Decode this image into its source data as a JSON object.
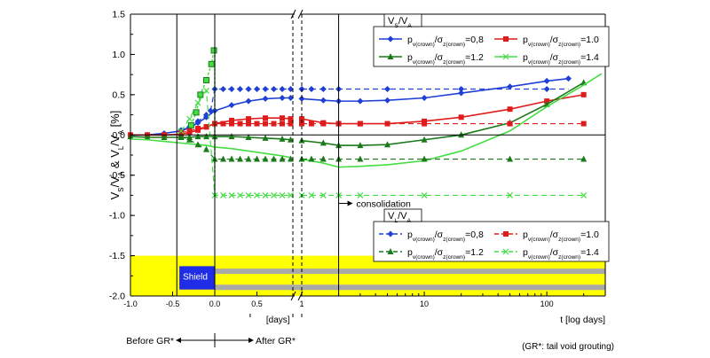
{
  "chart_data": {
    "type": "line",
    "ylabel": "V_S/V_A & V_L/V_A [%]",
    "ylim": [
      -2.0,
      1.5
    ],
    "yticks": [
      "1.5",
      "1.0",
      "0.5",
      "0.0",
      "-0.5",
      "-1.0",
      "-1.5",
      "-2.0"
    ],
    "x_axis": {
      "linear_segment": {
        "range": [
          -1.0,
          1.0
        ],
        "ticks": [
          "-1.0",
          "-0.5",
          "0.0",
          "0.5"
        ],
        "unit_label": "[days]"
      },
      "log_segment": {
        "range": [
          1,
          300
        ],
        "ticks": [
          "1",
          "10",
          "100"
        ],
        "unit_label": "t [log days]"
      },
      "axis_break": true
    },
    "grid": false,
    "annotations": {
      "consolidation": "consolidation",
      "shield": "Shield",
      "before_gr": "Before GR*",
      "after_gr": "After GR*",
      "footnote": "(GR*: tail void grouting)"
    },
    "legend_top": {
      "title_main": "V",
      "title_sub1": "S",
      "title_mid": "/V",
      "title_sub2": "A",
      "placement": "top-right"
    },
    "legend_bottom": {
      "title_main": "V",
      "title_sub1": "L",
      "title_mid": "/V",
      "title_sub2": "A",
      "placement": "bottom-right"
    },
    "legend_text": {
      "p_main": "p",
      "p_sub": "v(crown)",
      "sigma_main": "/σ",
      "sigma_sub": "z(crown)"
    },
    "colors": {
      "blue": "#1f3fd6",
      "red": "#e01b1b",
      "darkgreen": "#1a7a1a",
      "lightgreen": "#44dd44",
      "yellow": "#ffff00",
      "shield": "#1f2ee6"
    },
    "series": [
      {
        "name": "=0,8",
        "kind": "VS",
        "color": "#1f3fd6",
        "marker": "diamond",
        "x": [
          -1.0,
          -0.8,
          -0.6,
          -0.4,
          -0.3,
          -0.2,
          -0.1,
          0.0,
          0.2,
          0.4,
          0.6,
          0.8,
          0.9,
          1.0,
          1.5,
          2.0,
          3,
          5,
          10,
          20,
          50,
          100,
          150
        ],
        "y": [
          0.0,
          0.0,
          0.02,
          0.05,
          0.09,
          0.15,
          0.22,
          0.3,
          0.37,
          0.42,
          0.45,
          0.46,
          0.46,
          0.45,
          0.43,
          0.42,
          0.42,
          0.43,
          0.46,
          0.52,
          0.6,
          0.67,
          0.7
        ]
      },
      {
        "name": "=1.0",
        "kind": "VS",
        "color": "#e01b1b",
        "marker": "square",
        "x": [
          -1.0,
          -0.8,
          -0.6,
          -0.4,
          -0.3,
          -0.2,
          -0.1,
          0.0,
          0.2,
          0.4,
          0.6,
          0.8,
          0.9,
          1.0,
          1.5,
          2.0,
          3,
          5,
          10,
          20,
          50,
          100,
          200
        ],
        "y": [
          0.0,
          0.0,
          0.0,
          0.01,
          0.03,
          0.06,
          0.1,
          0.14,
          0.18,
          0.2,
          0.21,
          0.21,
          0.2,
          0.2,
          0.15,
          0.14,
          0.14,
          0.14,
          0.17,
          0.22,
          0.32,
          0.42,
          0.5
        ]
      },
      {
        "name": "=1.2",
        "kind": "VS",
        "color": "#1a7a1a",
        "marker": "triangle",
        "x": [
          -1.0,
          -0.8,
          -0.6,
          -0.4,
          -0.3,
          -0.2,
          -0.1,
          0.0,
          0.2,
          0.4,
          0.6,
          0.8,
          0.9,
          1.0,
          1.5,
          2.0,
          3,
          5,
          10,
          20,
          50,
          100,
          200
        ],
        "y": [
          -0.02,
          -0.03,
          -0.03,
          -0.03,
          -0.03,
          -0.02,
          -0.02,
          -0.02,
          -0.02,
          -0.03,
          -0.04,
          -0.05,
          -0.06,
          -0.07,
          -0.1,
          -0.13,
          -0.13,
          -0.12,
          -0.06,
          0.0,
          0.15,
          0.38,
          0.65
        ]
      },
      {
        "name": "=1.4",
        "kind": "VS",
        "color": "#44dd44",
        "marker": "none",
        "x": [
          -1.0,
          -0.8,
          -0.6,
          -0.4,
          -0.3,
          -0.2,
          -0.1,
          0.0,
          0.2,
          0.4,
          0.6,
          0.8,
          0.9,
          1.0,
          1.5,
          2.0,
          3,
          5,
          10,
          20,
          50,
          100,
          200,
          280
        ],
        "y": [
          -0.05,
          -0.06,
          -0.08,
          -0.1,
          -0.11,
          -0.12,
          -0.13,
          -0.15,
          -0.17,
          -0.2,
          -0.23,
          -0.26,
          -0.28,
          -0.3,
          -0.35,
          -0.4,
          -0.39,
          -0.37,
          -0.32,
          -0.2,
          0.05,
          0.35,
          0.62,
          0.76
        ]
      },
      {
        "name": "=0,8",
        "kind": "VL",
        "color": "#1f3fd6",
        "marker": "diamond",
        "x": [
          -0.4,
          -0.3,
          -0.2,
          -0.1,
          -0.05,
          0.0,
          0.1,
          0.2,
          0.3,
          0.4,
          0.5,
          0.6,
          0.7,
          0.8,
          0.9,
          1.0,
          1.2,
          1.5,
          2.0,
          3,
          5,
          10,
          20,
          50,
          100,
          150
        ],
        "y": [
          0.06,
          0.1,
          0.17,
          0.25,
          0.3,
          0.57,
          0.57,
          0.57,
          0.57,
          0.57,
          0.57,
          0.57,
          0.57,
          0.57,
          0.57,
          0.57,
          0.57,
          0.57,
          0.57,
          0.57,
          0.57,
          0.57,
          0.57,
          0.57,
          0.57,
          0.57
        ]
      },
      {
        "name": "=1.0",
        "kind": "VL",
        "color": "#e01b1b",
        "marker": "square",
        "x": [
          -0.4,
          -0.3,
          -0.2,
          -0.1,
          0.0,
          0.1,
          0.2,
          0.3,
          0.4,
          0.5,
          0.6,
          0.7,
          0.8,
          0.9,
          1.0,
          1.2,
          1.5,
          2.0,
          3,
          5,
          10,
          20,
          50,
          100,
          200
        ],
        "y": [
          0.03,
          0.05,
          0.08,
          0.1,
          0.14,
          0.14,
          0.14,
          0.14,
          0.14,
          0.14,
          0.14,
          0.14,
          0.14,
          0.14,
          0.14,
          0.14,
          0.14,
          0.14,
          0.14,
          0.14,
          0.14,
          0.14,
          0.14,
          0.14,
          0.14
        ]
      },
      {
        "name": "=1.2",
        "kind": "VL",
        "color": "#1a7a1a",
        "marker": "triangle",
        "x": [
          -0.4,
          -0.3,
          -0.2,
          -0.1,
          0.0,
          0.1,
          0.2,
          0.3,
          0.4,
          0.5,
          0.6,
          0.7,
          0.8,
          0.9,
          1.0,
          1.2,
          1.5,
          2.0,
          3,
          5,
          10,
          20,
          50,
          100,
          200
        ],
        "y": [
          -0.02,
          -0.06,
          -0.12,
          -0.18,
          -0.3,
          -0.3,
          -0.3,
          -0.3,
          -0.3,
          -0.3,
          -0.3,
          -0.3,
          -0.3,
          -0.3,
          -0.3,
          -0.3,
          -0.3,
          -0.3,
          -0.3,
          -0.3,
          -0.3,
          -0.3,
          -0.3,
          -0.3,
          -0.3
        ]
      },
      {
        "name": "=1.4",
        "kind": "VL",
        "color": "#44dd44",
        "marker": "x",
        "x": [
          -0.4,
          -0.3,
          -0.2,
          -0.1,
          0.0,
          0.1,
          0.2,
          0.3,
          0.4,
          0.5,
          0.6,
          0.7,
          0.8,
          0.9,
          1.0,
          1.2,
          1.5,
          2.0,
          3,
          5,
          10,
          20,
          50,
          100,
          200
        ],
        "y": [
          0.05,
          0.2,
          0.4,
          0.55,
          -0.75,
          -0.75,
          -0.75,
          -0.75,
          -0.75,
          -0.75,
          -0.75,
          -0.75,
          -0.75,
          -0.75,
          -0.75,
          -0.75,
          -0.75,
          -0.75,
          -0.75,
          -0.75,
          -0.75,
          -0.75,
          -0.75,
          -0.75,
          -0.75
        ]
      }
    ],
    "grouting_spike": {
      "x": [
        -0.28,
        -0.22,
        -0.17,
        -0.1,
        -0.04,
        -0.01
      ],
      "y": [
        0.12,
        0.28,
        0.5,
        0.68,
        0.88,
        1.05
      ]
    }
  }
}
